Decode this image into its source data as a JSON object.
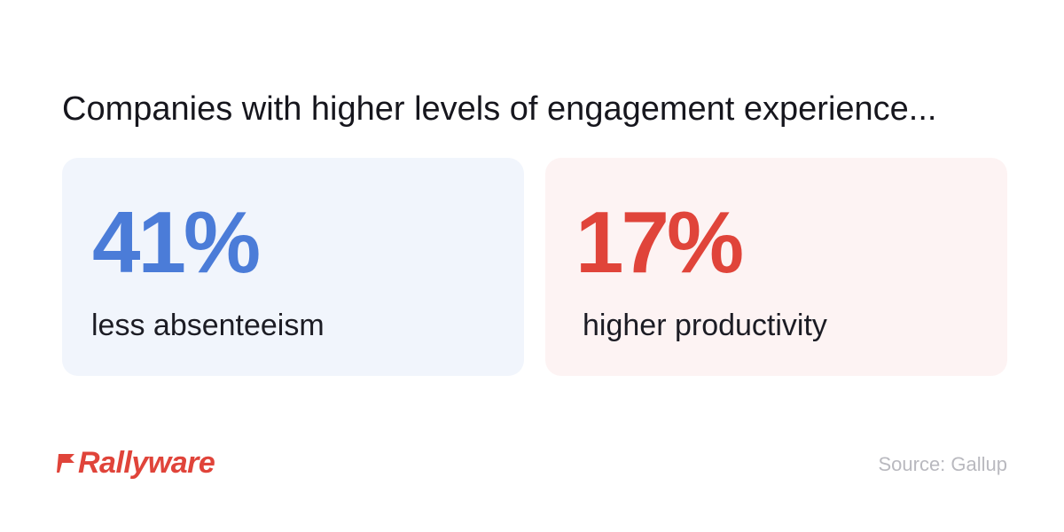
{
  "headline": "Companies with higher levels of engagement experience...",
  "stats": [
    {
      "value": "41%",
      "label": "less absenteeism",
      "color": "#4b7cd8",
      "background": "#f1f5fc"
    },
    {
      "value": "17%",
      "label": "higher productivity",
      "color": "#e0443a",
      "background": "#fdf3f3"
    }
  ],
  "brand": {
    "name": "Rallyware",
    "color": "#e0443a",
    "icon": "flag-icon"
  },
  "source": "Source: Gallup"
}
